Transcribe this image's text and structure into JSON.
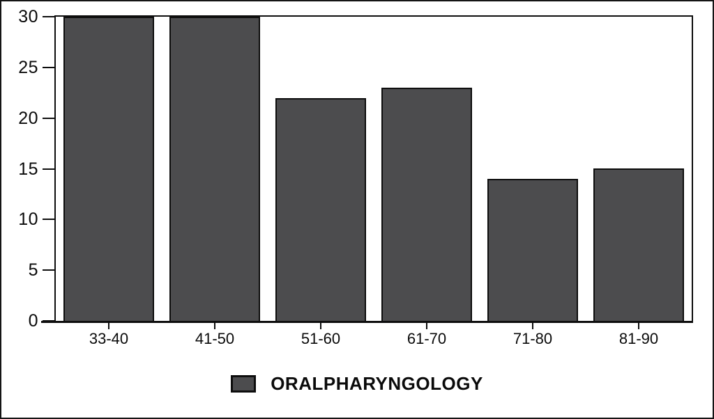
{
  "figure": {
    "background": "#ffffff",
    "border_color": "#141414"
  },
  "chart_data": {
    "type": "bar",
    "categories": [
      "33-40",
      "41-50",
      "51-60",
      "61-70",
      "71-80",
      "81-90"
    ],
    "values": [
      30,
      30,
      22,
      23,
      14,
      15
    ],
    "series_name": "ORALPHARYNGOLOGY",
    "title": "",
    "xlabel": "",
    "ylabel": "",
    "ylim": [
      0,
      30
    ],
    "yticks": [
      0,
      5,
      10,
      15,
      20,
      25,
      30
    ],
    "grid": false,
    "legend_position": "bottom-center",
    "bar_color": "#4c4c4e",
    "bar_outline_color": "#0d0d0d",
    "axis_color": "#0d0d0d",
    "text_color": "#0a0a0a"
  },
  "legend": {
    "label": "ORALPHARYNGOLOGY",
    "swatch_color": "#4c4c4e"
  }
}
